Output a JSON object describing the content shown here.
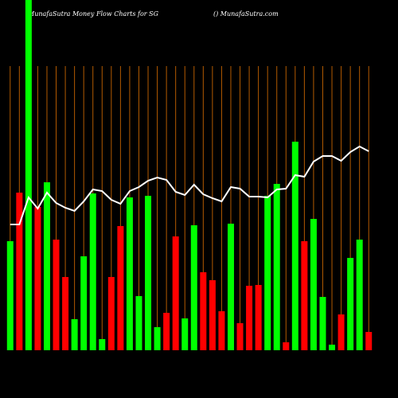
{
  "chart_data": {
    "type": "bar",
    "title": "MunafaSutra  Money Flow  Charts for SG",
    "subtitle": "() MunafaSutra.com",
    "ylim": [
      0,
      440
    ],
    "values": [
      137,
      198,
      440,
      180,
      211,
      139,
      92,
      39,
      118,
      197,
      14,
      92,
      156,
      192,
      68,
      194,
      29,
      47,
      143,
      40,
      157,
      98,
      88,
      49,
      159,
      34,
      81,
      82,
      194,
      209,
      10,
      262,
      137,
      165,
      67,
      7,
      45,
      116,
      139,
      23
    ],
    "colors": [
      "#00ff00",
      "#ff0000",
      "#00ff00",
      "#ff0000",
      "#00ff00",
      "#ff0000",
      "#ff0000",
      "#00ff00",
      "#00ff00",
      "#00ff00",
      "#00ff00",
      "#ff0000",
      "#ff0000",
      "#00ff00",
      "#00ff00",
      "#00ff00",
      "#00ff00",
      "#ff0000",
      "#ff0000",
      "#00ff00",
      "#00ff00",
      "#ff0000",
      "#ff0000",
      "#ff0000",
      "#00ff00",
      "#ff0000",
      "#ff0000",
      "#ff0000",
      "#00ff00",
      "#00ff00",
      "#ff0000",
      "#00ff00",
      "#ff0000",
      "#00ff00",
      "#00ff00",
      "#00ff00",
      "#ff0000",
      "#00ff00",
      "#00ff00",
      "#ff0000"
    ],
    "line": {
      "color": "#ffffff",
      "values": [
        158,
        158,
        192,
        178,
        198,
        185,
        179,
        175,
        187,
        202,
        200,
        189,
        184,
        200,
        205,
        213,
        217,
        214,
        199,
        195,
        208,
        196,
        191,
        187,
        205,
        203,
        193,
        193,
        192,
        202,
        203,
        220,
        218,
        237,
        244,
        244,
        238,
        249,
        256,
        250
      ]
    }
  }
}
